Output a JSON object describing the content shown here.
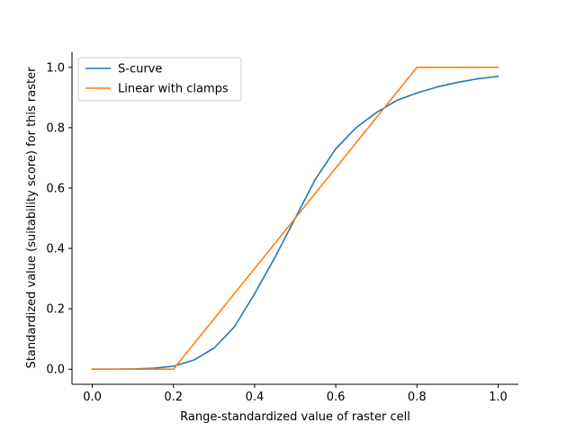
{
  "chart_data": {
    "type": "line",
    "title": "",
    "xlabel": "Range-standardized value of raster cell",
    "ylabel": "Standardized value (suitability score) for this raster",
    "xlim": [
      -0.05,
      1.05
    ],
    "ylim": [
      -0.05,
      1.05
    ],
    "xticks": [
      0.0,
      0.2,
      0.4,
      0.6,
      0.8,
      1.0
    ],
    "yticks": [
      0.0,
      0.2,
      0.4,
      0.6,
      0.8,
      1.0
    ],
    "xtick_labels": [
      "0.0",
      "0.2",
      "0.4",
      "0.6",
      "0.8",
      "1.0"
    ],
    "ytick_labels": [
      "0.0",
      "0.2",
      "0.4",
      "0.6",
      "0.8",
      "1.0"
    ],
    "grid": false,
    "legend_position": "upper-left",
    "series": [
      {
        "name": "S-curve",
        "color": "#1f77b4",
        "x": [
          0.0,
          0.05,
          0.1,
          0.15,
          0.2,
          0.25,
          0.3,
          0.35,
          0.4,
          0.45,
          0.5,
          0.55,
          0.6,
          0.65,
          0.7,
          0.75,
          0.8,
          0.85,
          0.9,
          0.95,
          1.0
        ],
        "y": [
          0.0,
          0.0,
          0.001,
          0.003,
          0.01,
          0.03,
          0.07,
          0.14,
          0.25,
          0.37,
          0.5,
          0.63,
          0.73,
          0.8,
          0.85,
          0.89,
          0.915,
          0.935,
          0.95,
          0.962,
          0.97
        ]
      },
      {
        "name": "Linear with clamps",
        "color": "#ff7f0e",
        "x": [
          0.0,
          0.2,
          0.8,
          1.0
        ],
        "y": [
          0.0,
          0.0,
          1.0,
          1.0
        ]
      }
    ]
  }
}
